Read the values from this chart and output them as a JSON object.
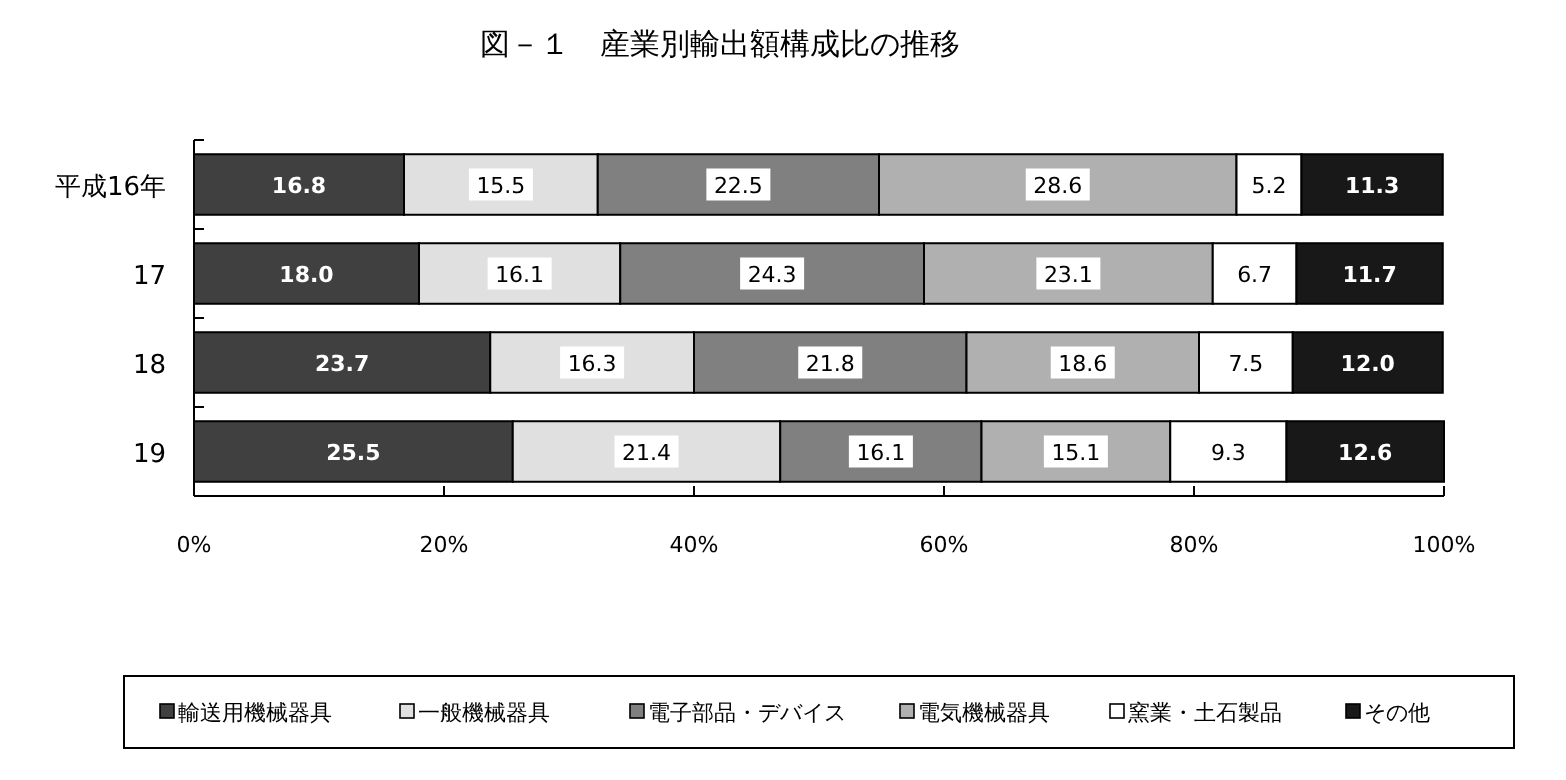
{
  "chart_data": {
    "type": "bar",
    "orientation": "horizontal",
    "stacked": true,
    "title": "図－１　産業別輸出額構成比の推移",
    "categories": [
      "平成16年",
      "17",
      "18",
      "19"
    ],
    "series": [
      {
        "name": "輸送用機械器具",
        "color": "#404040",
        "values": [
          16.8,
          18.0,
          23.7,
          25.5
        ],
        "value_labels": [
          "16.8",
          "18.0",
          "23.7",
          "25.5"
        ]
      },
      {
        "name": "一般機械器具",
        "color": "#e0e0e0",
        "values": [
          15.5,
          16.1,
          16.3,
          21.4
        ]
      },
      {
        "name": "電子部品・デバイス",
        "color": "#808080",
        "values": [
          22.5,
          24.3,
          21.8,
          16.1
        ]
      },
      {
        "name": "電気機械器具",
        "color": "#b0b0b0",
        "values": [
          28.6,
          23.1,
          18.6,
          15.1
        ]
      },
      {
        "name": "窯業・土石製品",
        "color": "#ffffff",
        "values": [
          5.2,
          6.7,
          7.5,
          9.3
        ]
      },
      {
        "name": "その他",
        "color": "#181818",
        "values": [
          11.3,
          11.7,
          12.0,
          12.6
        ],
        "value_labels": [
          "11.3",
          "11.7",
          "12.0",
          "12.6"
        ]
      }
    ],
    "xlim": [
      0,
      100
    ],
    "xticks": [
      {
        "value": 0,
        "label": "0%"
      },
      {
        "value": 20,
        "label": "20%"
      },
      {
        "value": 40,
        "label": "40%"
      },
      {
        "value": 60,
        "label": "60%"
      },
      {
        "value": 80,
        "label": "80%"
      },
      {
        "value": 100,
        "label": "100%"
      }
    ],
    "data_labels": true,
    "legend": "bottom",
    "grid": false
  }
}
